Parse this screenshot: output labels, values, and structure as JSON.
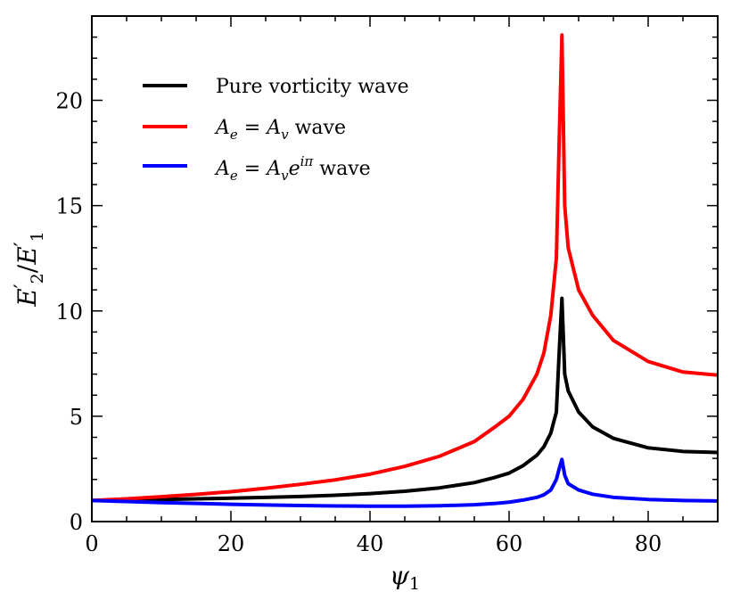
{
  "chart_data": {
    "type": "line",
    "xlabel": "ψ",
    "xlabel_sub": "1",
    "ylabel_parts": [
      "E",
      "′",
      "2",
      "/",
      "E",
      "′",
      "1"
    ],
    "xlim": [
      0,
      90
    ],
    "ylim": [
      0,
      24
    ],
    "x_ticks": [
      0,
      20,
      40,
      60,
      80
    ],
    "y_ticks": [
      0,
      5,
      10,
      15,
      20
    ],
    "legend_position": "upper-left",
    "grid": false,
    "series": [
      {
        "name": "Pure vorticity wave",
        "legend": {
          "main": "Pure vorticity wave"
        },
        "color": "#000000",
        "x": [
          0,
          5,
          10,
          15,
          20,
          25,
          30,
          35,
          40,
          45,
          50,
          55,
          58,
          60,
          62,
          64,
          65,
          66,
          66.8,
          67.2,
          67.6,
          68.0,
          68.5,
          70,
          72,
          75,
          80,
          85,
          90
        ],
        "y": [
          1.0,
          1.02,
          1.05,
          1.08,
          1.11,
          1.15,
          1.19,
          1.25,
          1.33,
          1.44,
          1.6,
          1.85,
          2.1,
          2.3,
          2.65,
          3.15,
          3.55,
          4.2,
          5.2,
          8.0,
          10.6,
          7.0,
          6.2,
          5.2,
          4.5,
          3.95,
          3.5,
          3.33,
          3.28
        ]
      },
      {
        "name": "A_e = A_v wave",
        "legend": {
          "a": "A",
          "a_sub": "e",
          "eq": " = ",
          "b": "A",
          "b_sub": "v",
          "tail": " wave"
        },
        "color": "#ff0000",
        "x": [
          0,
          5,
          10,
          15,
          20,
          25,
          30,
          35,
          40,
          45,
          50,
          55,
          58,
          60,
          62,
          64,
          65,
          66,
          66.8,
          67.2,
          67.6,
          68.0,
          68.5,
          70,
          72,
          75,
          80,
          85,
          90
        ],
        "y": [
          1.0,
          1.08,
          1.18,
          1.29,
          1.42,
          1.58,
          1.77,
          1.98,
          2.25,
          2.62,
          3.1,
          3.8,
          4.5,
          5.0,
          5.8,
          7.0,
          8.0,
          9.8,
          12.5,
          18.0,
          23.1,
          15.0,
          13.0,
          11.0,
          9.8,
          8.6,
          7.6,
          7.1,
          6.95
        ]
      },
      {
        "name": "A_e = A_v e^{iπ} wave",
        "legend": {
          "a": "A",
          "a_sub": "e",
          "eq": " = ",
          "b": "A",
          "b_sub": "v",
          "e": "e",
          "sup": "iπ",
          "tail": " wave"
        },
        "color": "#0000ff",
        "x": [
          0,
          5,
          10,
          15,
          20,
          25,
          30,
          35,
          40,
          45,
          50,
          55,
          58,
          60,
          62,
          64,
          65,
          66,
          66.8,
          67.2,
          67.6,
          68.0,
          68.5,
          70,
          72,
          75,
          80,
          85,
          90
        ],
        "y": [
          1.0,
          0.95,
          0.9,
          0.86,
          0.82,
          0.79,
          0.76,
          0.74,
          0.73,
          0.73,
          0.75,
          0.8,
          0.86,
          0.92,
          1.02,
          1.15,
          1.27,
          1.5,
          2.0,
          2.5,
          2.95,
          2.2,
          1.8,
          1.5,
          1.3,
          1.15,
          1.05,
          1.0,
          0.98
        ]
      }
    ]
  }
}
